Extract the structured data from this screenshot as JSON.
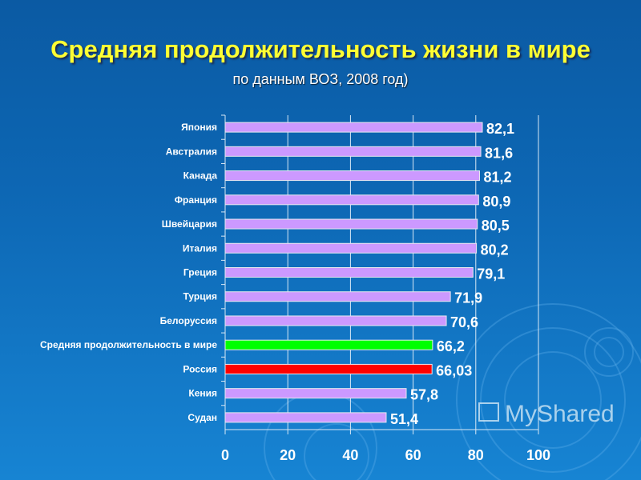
{
  "chart_data": {
    "type": "bar",
    "title": "Средняя продолжительность жизни в мире",
    "subtitle": "по данным ВОЗ, 2008 год)",
    "categories": [
      "Япония",
      "Австралия",
      "Канада",
      "Франция",
      "Швейцария",
      "Италия",
      "Греция",
      "Турция",
      "Белоруссия",
      "Средняя продолжительность в мире",
      "Россия",
      "Кения",
      "Судан"
    ],
    "values": [
      82.1,
      81.6,
      81.2,
      80.9,
      80.5,
      80.2,
      79.1,
      71.9,
      70.6,
      66.2,
      66.03,
      57.8,
      51.4
    ],
    "value_labels": [
      "82,1",
      "81,6",
      "81,2",
      "80,9",
      "80,5",
      "80,2",
      "79,1",
      "71,9",
      "70,6",
      "66,2",
      "66,03",
      "57,8",
      "51,4"
    ],
    "bar_colors": [
      "#cc99ff",
      "#cc99ff",
      "#cc99ff",
      "#cc99ff",
      "#cc99ff",
      "#cc99ff",
      "#cc99ff",
      "#cc99ff",
      "#cc99ff",
      "#00ff00",
      "#ff0000",
      "#cc99ff",
      "#cc99ff"
    ],
    "xlim": [
      0,
      100
    ],
    "xticks": [
      0,
      20,
      40,
      60,
      80,
      100
    ],
    "grid": true,
    "xlabel": "",
    "ylabel": ""
  },
  "watermark": "MyShared"
}
